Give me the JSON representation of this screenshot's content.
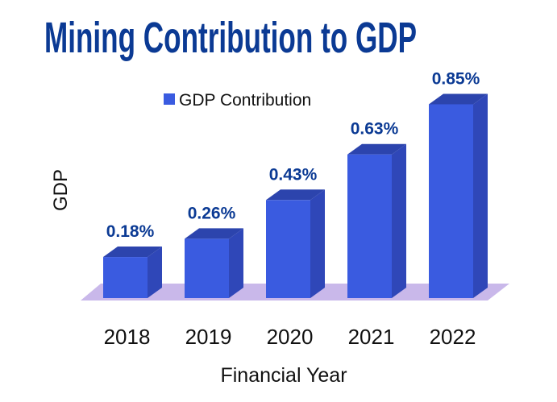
{
  "chart_data": {
    "type": "bar",
    "title": "Mining Contribution to GDP",
    "xlabel": "Financial Year",
    "ylabel": "GDP",
    "categories": [
      "2018",
      "2019",
      "2020",
      "2021",
      "2022"
    ],
    "series": [
      {
        "name": "GDP Contribution",
        "values": [
          0.18,
          0.26,
          0.43,
          0.63,
          0.85
        ],
        "color": "#3a5be0"
      }
    ],
    "data_labels": [
      "0.18%",
      "0.26%",
      "0.43%",
      "0.63%",
      "0.85%"
    ],
    "ylim": [
      0,
      0.9
    ],
    "grid": false,
    "legend_position": "top-left",
    "style": "3d-bar",
    "floor_color": "#c9b8ea"
  }
}
